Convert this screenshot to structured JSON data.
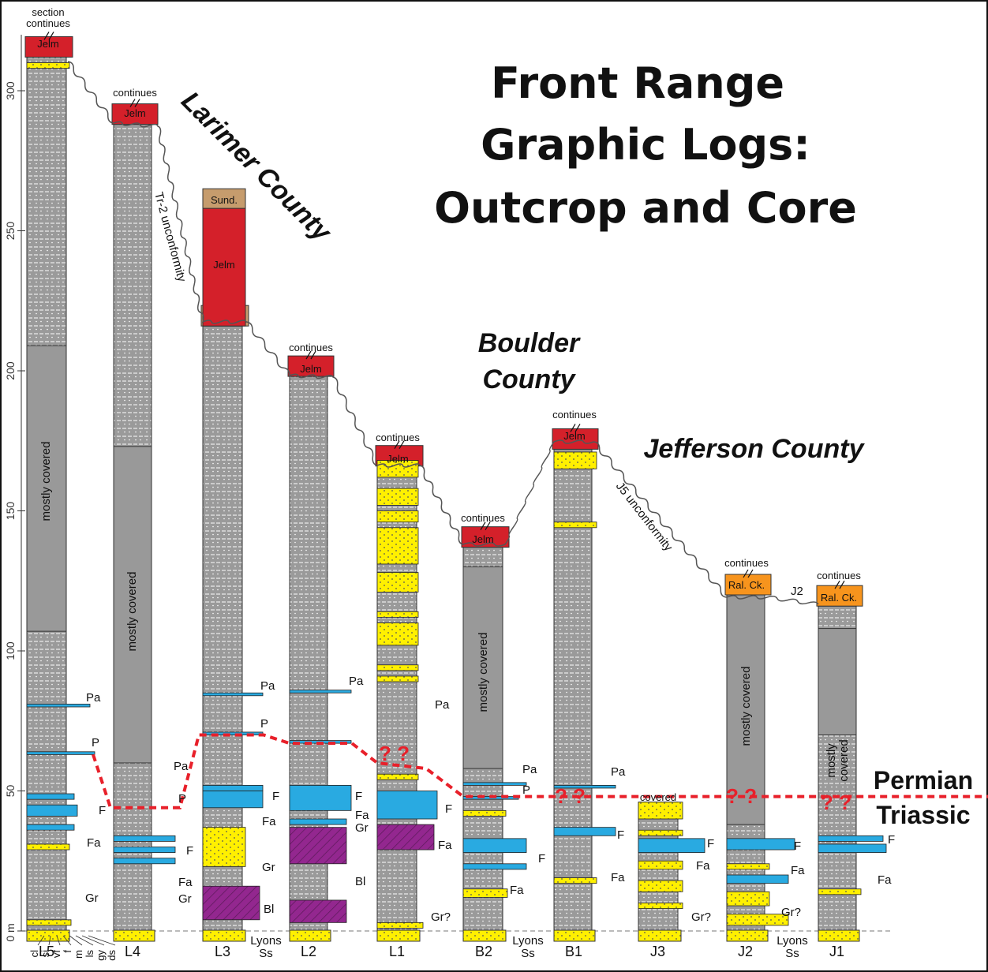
{
  "title_lines": [
    "Front Range",
    "Graphic Logs:",
    "Outcrop and Core"
  ],
  "counties": {
    "larimer": "Larimer County",
    "boulder_1": "Boulder",
    "boulder_2": "County",
    "jefferson": "Jefferson County"
  },
  "axis": {
    "ticks": [
      0,
      50,
      100,
      150,
      200,
      250,
      300
    ],
    "zero_label": "0 m",
    "grain_sizes": [
      "cl",
      "si",
      "vf",
      "f",
      "m",
      "ls",
      "gy",
      "ds"
    ]
  },
  "boundary": {
    "upper": "Permian",
    "lower": "Triassic",
    "unknown": "? ?"
  },
  "unconformities": {
    "tr2": "Tr-2 unconformity",
    "j5": "J5 unconformity",
    "j2": "J2"
  },
  "tops": {
    "jelm": "Jelm",
    "sund": "Sund.",
    "ralck": "Ral. Ck."
  },
  "texts": {
    "section_continues_1": "section",
    "section_continues_2": "continues",
    "continues": "continues",
    "mostly_covered": "mostly covered",
    "mostly": "mostly",
    "covered": "covered",
    "lyons": "Lyons",
    "ss": "Ss"
  },
  "colors": {
    "sandstone": "#fff000",
    "carbonate": "#29aae1",
    "mudstone": "#999999",
    "volcanic_purple": "#93278f",
    "jelm_red": "#d4202a",
    "sundance_tan": "#c69c6d",
    "ralston_orange": "#f7941d",
    "boundary_red": "#e8202a"
  },
  "columns": [
    {
      "name": "L5",
      "top_m": 312,
      "cover": [
        107,
        209
      ],
      "top_unit": "jelm",
      "cont": "section"
    },
    {
      "name": "L4",
      "top_m": 288,
      "cover": [
        60,
        173
      ],
      "top_unit": "jelm",
      "cont": "continues"
    },
    {
      "name": "L3",
      "top_m": 216,
      "cover": null,
      "top_unit": "sund",
      "cont": null
    },
    {
      "name": "L2",
      "top_m": 198,
      "cover": null,
      "top_unit": "jelm",
      "cont": "continues"
    },
    {
      "name": "L1",
      "top_m": 166,
      "cover": null,
      "top_unit": "jelm",
      "cont": "continues"
    },
    {
      "name": "B2",
      "top_m": 137,
      "cover": [
        58,
        130
      ],
      "top_unit": "jelm",
      "cont": "continues"
    },
    {
      "name": "B1",
      "top_m": 172,
      "cover": null,
      "top_unit": "jelm",
      "cont": "continues"
    },
    {
      "name": "J3",
      "top_m": 46,
      "cover": null,
      "top_unit": null,
      "cont": null
    },
    {
      "name": "J2",
      "top_m": 120,
      "cover": [
        38,
        120
      ],
      "top_unit": "ralck",
      "cont": "continues"
    },
    {
      "name": "J1",
      "top_m": 116,
      "cover": [
        70,
        108
      ],
      "top_unit": "ralck",
      "cont": "continues"
    }
  ],
  "facies_codes": {
    "pa": "Pa",
    "p": "P",
    "f": "F",
    "fa": "Fa",
    "gr": "Gr",
    "gr_q": "Gr?",
    "bl": "Bl"
  }
}
